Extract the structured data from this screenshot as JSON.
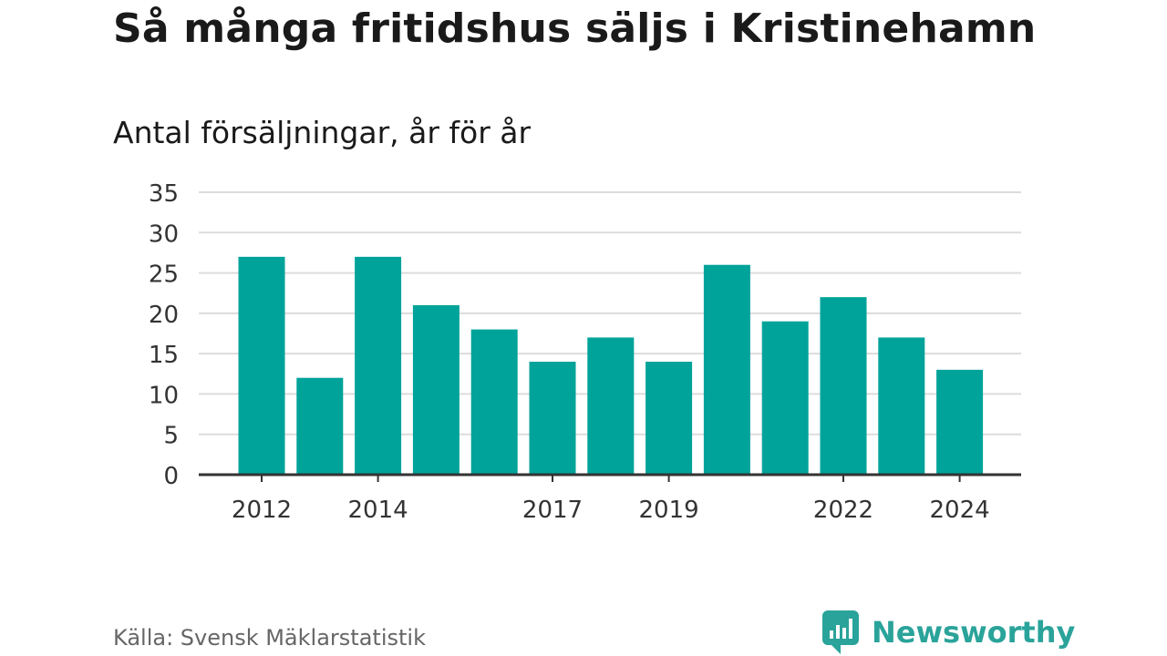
{
  "title": "Så många fritidshus säljs i Kristinehamn",
  "subtitle": "Antal försäljningar, år för år",
  "source": "Källa: Svensk Mäklarstatistik",
  "brand": {
    "name": "Newsworthy",
    "icon": "newsworthy-logo-icon",
    "color": "#2aa39a"
  },
  "chart_data": {
    "type": "bar",
    "categories": [
      "2012",
      "2013",
      "2014",
      "2015",
      "2016",
      "2017",
      "2018",
      "2019",
      "2020",
      "2021",
      "2022",
      "2023",
      "2024"
    ],
    "values": [
      27,
      12,
      27,
      21,
      18,
      14,
      17,
      14,
      26,
      19,
      22,
      17,
      13
    ],
    "x_tick_labels": [
      "2012",
      "2014",
      "2017",
      "2019",
      "2022",
      "2024"
    ],
    "y_ticks": [
      0,
      5,
      10,
      15,
      20,
      25,
      30,
      35
    ],
    "ylim": [
      0,
      35
    ],
    "xlabel": "",
    "ylabel": "",
    "bar_color": "#00a39a",
    "grid": true,
    "legend": false
  }
}
